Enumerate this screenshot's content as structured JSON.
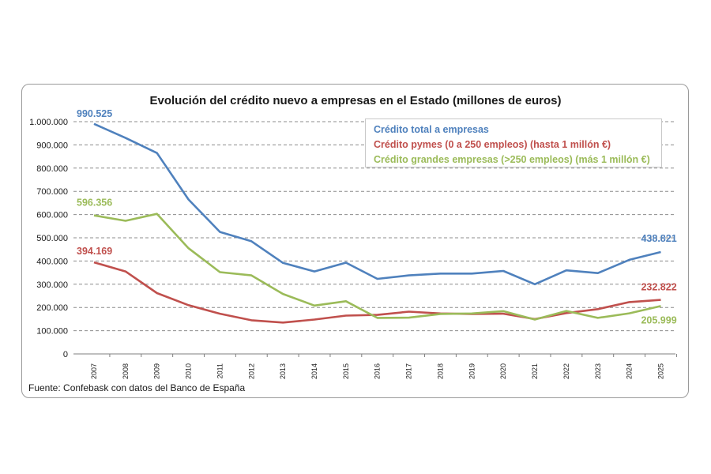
{
  "chart_data": {
    "type": "line",
    "title": "Evolución del crédito nuevo a empresas en el Estado (millones de euros)",
    "source": "Fuente: Confebask con datos del Banco de España",
    "categories": [
      "2007",
      "2008",
      "2009",
      "2010",
      "2011",
      "2012",
      "2013",
      "2014",
      "2015",
      "2016",
      "2017",
      "2018",
      "2019",
      "2020",
      "2021",
      "2022",
      "2023",
      "2024",
      "2025"
    ],
    "ylim": [
      0,
      1000000
    ],
    "yticks": [
      "0",
      "100.000",
      "200.000",
      "300.000",
      "400.000",
      "500.000",
      "600.000",
      "700.000",
      "800.000",
      "900.000",
      "1.000.000"
    ],
    "grid": true,
    "legend_position": "top-right",
    "series": [
      {
        "name": "Crédito total a empresas",
        "color": "#4f81bd",
        "values": [
          990525,
          930000,
          865000,
          665000,
          525000,
          485000,
          392000,
          355000,
          393000,
          323000,
          338000,
          346000,
          346000,
          357000,
          300000,
          360000,
          348000,
          405000,
          438821
        ],
        "labels": {
          "first": "990.525",
          "last": "438.821"
        }
      },
      {
        "name": "Crédito pymes (0 a 250 empleos) (hasta 1 millón €)",
        "color": "#c0504d",
        "values": [
          394169,
          355000,
          262000,
          210000,
          173000,
          145000,
          135000,
          148000,
          165000,
          168000,
          182000,
          174000,
          172000,
          173000,
          150000,
          176000,
          193000,
          223000,
          232822
        ],
        "labels": {
          "first": "394.169",
          "last": "232.822"
        }
      },
      {
        "name": "Crédito grandes empresas (>250 empleos) (más 1 millón €)",
        "color": "#9bbb59",
        "values": [
          596356,
          573000,
          603000,
          455000,
          352000,
          338000,
          258000,
          208000,
          227000,
          155000,
          156000,
          172000,
          174000,
          184000,
          148000,
          185000,
          155000,
          175000,
          205999
        ],
        "labels": {
          "first": "596.356",
          "last": "205.999"
        }
      }
    ]
  }
}
